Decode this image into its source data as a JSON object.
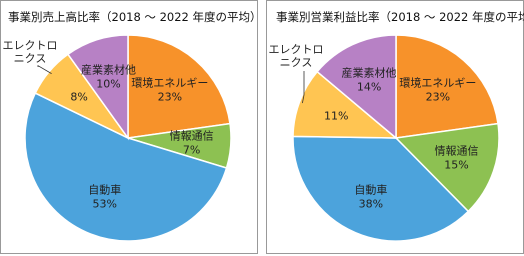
{
  "chart_data": [
    {
      "type": "pie",
      "title": "事業別売上高比率（2018 ～ 2022 年度の平均）",
      "categories": [
        "環境エネルギー",
        "情報通信",
        "自動車",
        "エレクトロ\nニクス",
        "産業素材他"
      ],
      "values": [
        23,
        7,
        53,
        8,
        10
      ],
      "value_labels": [
        "23%",
        "7%",
        "53%",
        "8%",
        "10%"
      ],
      "colors": [
        "#f7922a",
        "#8dc152",
        "#4ca3dc",
        "#ffc552",
        "#b781c5"
      ]
    },
    {
      "type": "pie",
      "title": "事業別営業利益比率（2018 ～ 2022 年度の平均）",
      "categories": [
        "環境エネルギー",
        "情報通信",
        "自動車",
        "エレクトロ\nニクス",
        "産業素材他"
      ],
      "values": [
        23,
        15,
        38,
        11,
        14
      ],
      "value_labels": [
        "23%",
        "15%",
        "38%",
        "11%",
        "14%"
      ],
      "colors": [
        "#f7922a",
        "#8dc152",
        "#4ca3dc",
        "#ffc552",
        "#b781c5"
      ]
    }
  ]
}
